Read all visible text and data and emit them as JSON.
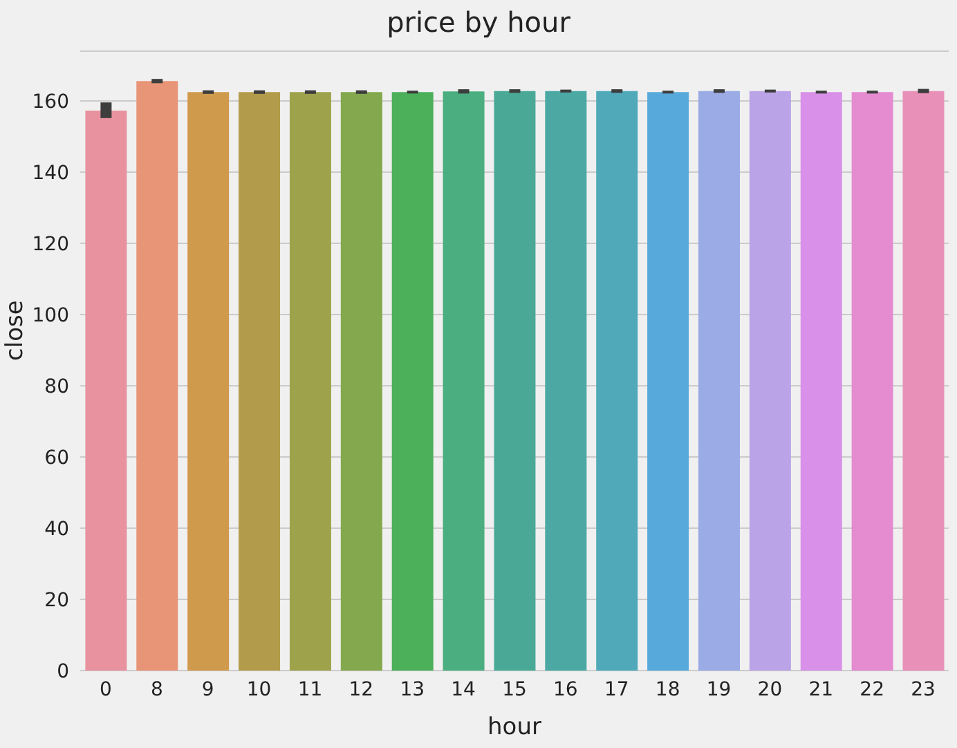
{
  "chart_data": {
    "type": "bar",
    "title": "price by hour",
    "xlabel": "hour",
    "ylabel": "close",
    "categories": [
      "0",
      "8",
      "9",
      "10",
      "11",
      "12",
      "13",
      "14",
      "15",
      "16",
      "17",
      "18",
      "19",
      "20",
      "21",
      "22",
      "23"
    ],
    "values": [
      157.3,
      165.6,
      162.5,
      162.5,
      162.5,
      162.5,
      162.5,
      162.7,
      162.8,
      162.8,
      162.8,
      162.5,
      162.8,
      162.8,
      162.5,
      162.5,
      162.8
    ],
    "errors": [
      [
        155.2,
        159.6
      ],
      [
        165.0,
        166.2
      ],
      0.5,
      0.5,
      0.5,
      0.5,
      0.4,
      0.6,
      0.5,
      0.4,
      0.5,
      0.4,
      0.5,
      0.4,
      0.4,
      0.4,
      0.6
    ],
    "colors": [
      "#e9929f",
      "#e89577",
      "#d09a4d",
      "#b29b4a",
      "#9da24b",
      "#84a84d",
      "#4caf5a",
      "#4aae80",
      "#4aa996",
      "#4ba8a3",
      "#4fa9b9",
      "#57a9db",
      "#9aabe6",
      "#bba3e8",
      "#d890e8",
      "#e58bd0",
      "#e890b8"
    ],
    "ylim": [
      0,
      174
    ],
    "yticks": [
      0,
      20,
      40,
      60,
      80,
      100,
      120,
      140,
      160
    ],
    "grid": "y",
    "legend": false
  }
}
